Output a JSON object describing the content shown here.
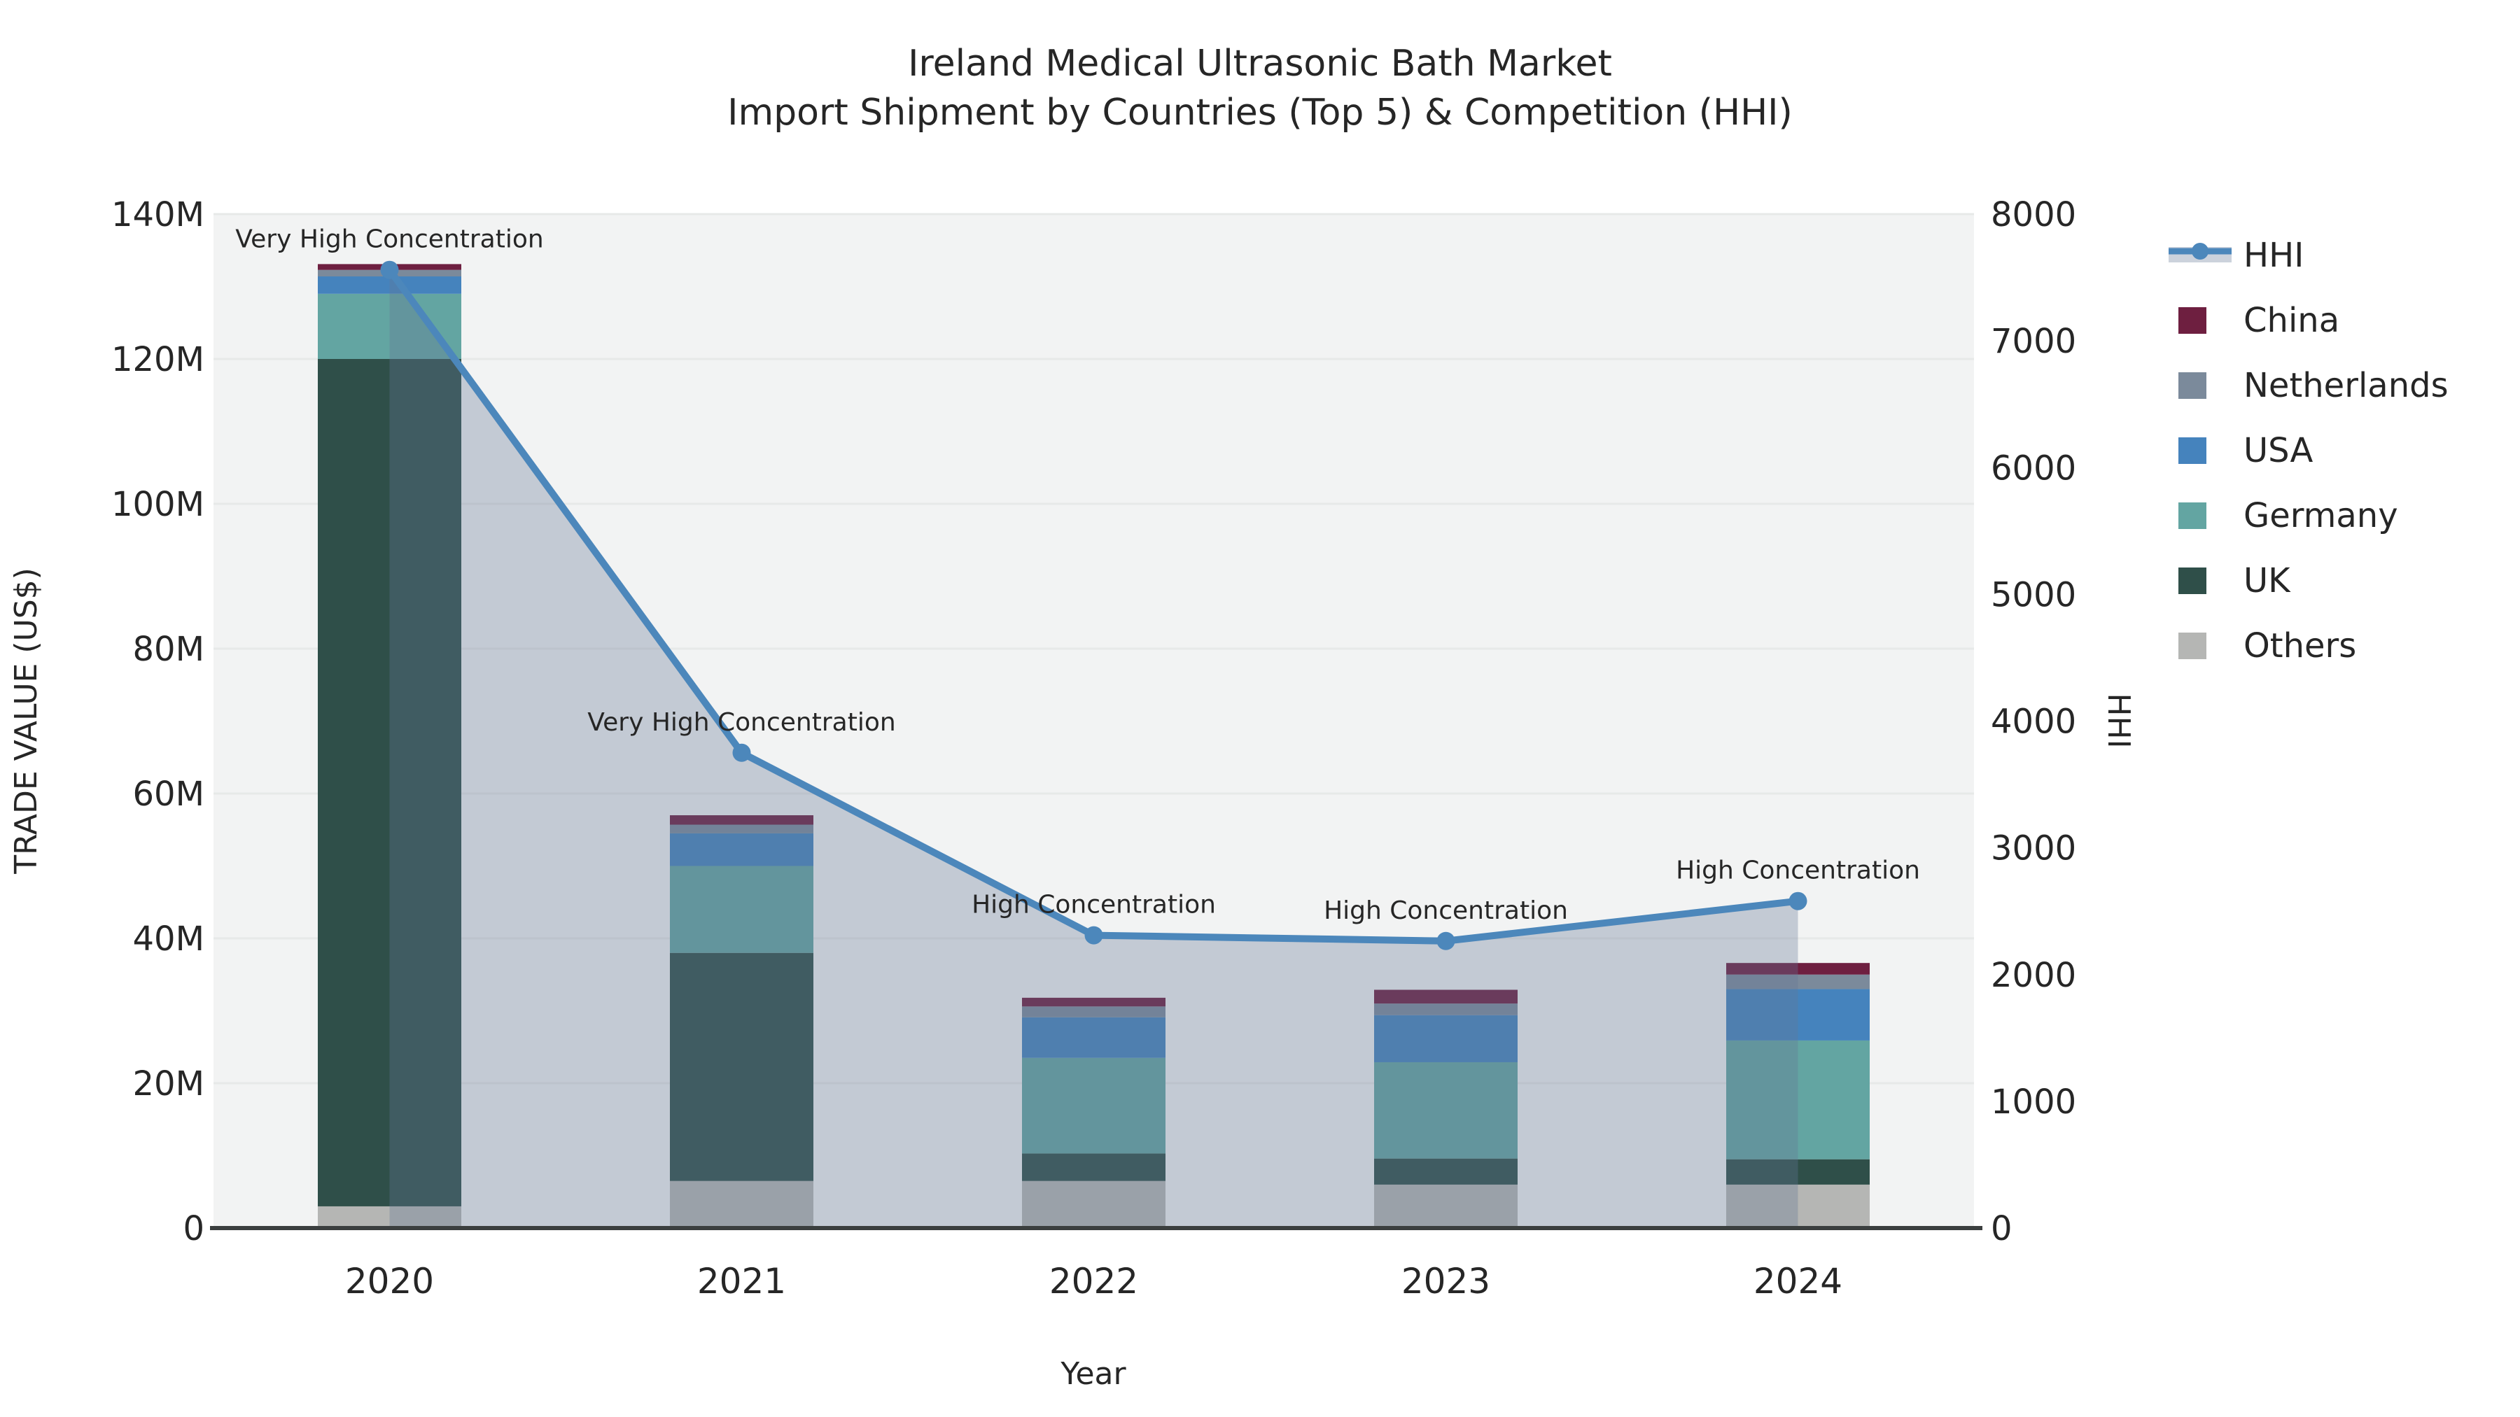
{
  "title": {
    "line1": "Ireland Medical Ultrasonic Bath Market",
    "line2": "Import Shipment by Countries (Top 5) & Competition (HHI)"
  },
  "axes": {
    "x_label": "Year",
    "y_left_label": "TRADE VALUE (US$)",
    "y_right_label": "HHI",
    "y_left_ticks": [
      "0",
      "20M",
      "40M",
      "60M",
      "80M",
      "100M",
      "120M",
      "140M"
    ],
    "y_right_ticks": [
      "0",
      "1000",
      "2000",
      "3000",
      "4000",
      "5000",
      "6000",
      "7000",
      "8000"
    ]
  },
  "legend": {
    "items": [
      {
        "label": "HHI",
        "type": "line",
        "color": "#4c87bb",
        "band": "#ccd2dc"
      },
      {
        "label": "China",
        "type": "swatch",
        "color": "#6e1f40"
      },
      {
        "label": "Netherlands",
        "type": "swatch",
        "color": "#7b8a9b"
      },
      {
        "label": "USA",
        "type": "swatch",
        "color": "#4583bd"
      },
      {
        "label": "Germany",
        "type": "swatch",
        "color": "#63a5a2"
      },
      {
        "label": "UK",
        "type": "swatch",
        "color": "#2f4f49"
      },
      {
        "label": "Others",
        "type": "swatch",
        "color": "#b5b6b4"
      }
    ]
  },
  "chart_data": {
    "type": "combo-stacked-bar-line",
    "title": "Ireland Medical Ultrasonic Bath Market — Import Shipment by Countries (Top 5) & Competition (HHI)",
    "xlabel": "Year",
    "ylabel_left": "TRADE VALUE (US$)",
    "ylabel_right": "HHI",
    "categories": [
      "2020",
      "2021",
      "2022",
      "2023",
      "2024"
    ],
    "bar_unit": "million US$",
    "series": [
      {
        "name": "Others",
        "color": "#b5b6b4",
        "values": [
          3.0,
          6.5,
          6.5,
          6.0,
          6.0
        ]
      },
      {
        "name": "UK",
        "color": "#2f4f49",
        "values": [
          117.0,
          31.5,
          3.8,
          3.6,
          3.5
        ]
      },
      {
        "name": "Germany",
        "color": "#63a5a2",
        "values": [
          9.0,
          12.0,
          13.2,
          13.3,
          16.4
        ]
      },
      {
        "name": "USA",
        "color": "#4583bd",
        "values": [
          2.4,
          4.5,
          5.6,
          6.5,
          7.1
        ]
      },
      {
        "name": "Netherlands",
        "color": "#7b8a9b",
        "values": [
          0.9,
          1.2,
          1.5,
          1.6,
          2.0
        ]
      },
      {
        "name": "China",
        "color": "#6e1f40",
        "values": [
          0.8,
          1.3,
          1.2,
          1.9,
          1.6
        ]
      }
    ],
    "bar_totals": [
      133.1,
      57.0,
      31.8,
      32.9,
      36.6
    ],
    "line_series": {
      "name": "HHI",
      "color": "#4c87bb",
      "fill": "rgba(100,119,148,0.33)",
      "values": [
        7560,
        3750,
        2310,
        2265,
        2580
      ]
    },
    "annotations": [
      "Very High Concentration",
      "Very High Concentration",
      "High Concentration",
      "High Concentration",
      "High Concentration"
    ],
    "y_left_axis": {
      "min": 0,
      "max": 140000000,
      "tick_step": 20000000,
      "tick_labels": [
        "0",
        "20M",
        "40M",
        "60M",
        "80M",
        "100M",
        "120M",
        "140M"
      ]
    },
    "y_right_axis": {
      "min": 0,
      "max": 8000,
      "tick_step": 1000
    },
    "legend_position": "right",
    "grid": "horizontal",
    "plot_bg": "#f2f3f3",
    "grid_color": "#e7e9e8"
  }
}
